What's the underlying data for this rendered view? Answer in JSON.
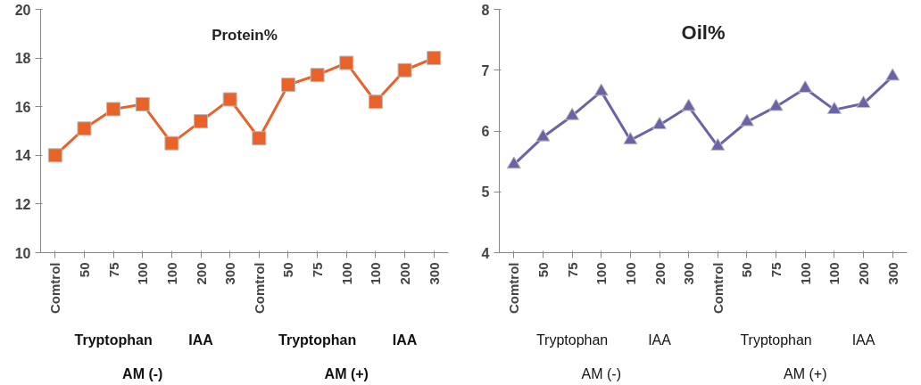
{
  "chart_data": [
    {
      "type": "line",
      "title": "Protein%",
      "categories": [
        "Comtrol",
        "50",
        "75",
        "100",
        "100",
        "200",
        "300",
        "Comtrol",
        "50",
        "75",
        "100",
        "100",
        "200",
        "300"
      ],
      "series": [
        {
          "color": "#e8622a",
          "marker": "square",
          "values": [
            14.0,
            15.1,
            15.9,
            16.1,
            14.5,
            15.4,
            16.3,
            14.7,
            16.9,
            17.3,
            17.8,
            16.2,
            17.5,
            18.0
          ]
        }
      ],
      "ylim": [
        10,
        20
      ],
      "yticks": [
        10,
        12,
        14,
        16,
        18,
        20
      ],
      "annotations": [
        "Tryptophan",
        "IAA",
        "Tryptophan",
        "IAA",
        "AM (-)",
        "AM (+)"
      ]
    },
    {
      "type": "line",
      "title": "Oil%",
      "categories": [
        "Comtrol",
        "50",
        "75",
        "100",
        "100",
        "200",
        "300",
        "Comtrol",
        "50",
        "75",
        "100",
        "100",
        "200",
        "300"
      ],
      "series": [
        {
          "color": "#6b63a8",
          "marker": "triangle",
          "values": [
            5.45,
            5.9,
            6.25,
            6.65,
            5.85,
            6.1,
            6.4,
            5.75,
            6.15,
            6.4,
            6.7,
            6.35,
            6.45,
            6.9
          ]
        }
      ],
      "ylim": [
        4,
        8
      ],
      "yticks": [
        4,
        5,
        6,
        7,
        8
      ],
      "annotations": [
        "Tryptophan",
        "IAA",
        "Tryptophan",
        "IAA",
        "AM (-)",
        "AM (+)"
      ]
    }
  ]
}
